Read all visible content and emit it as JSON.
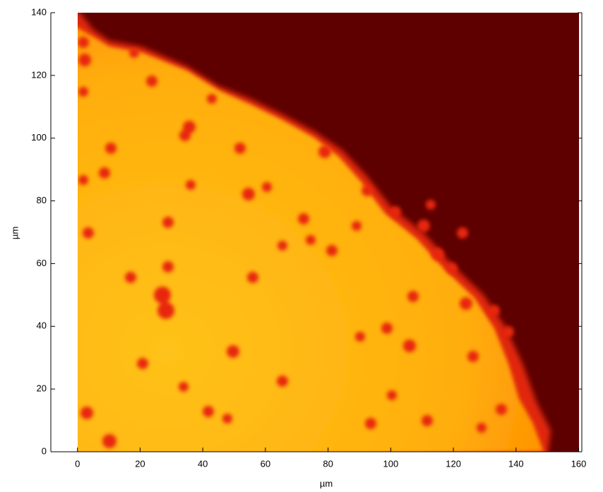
{
  "chart_data": {
    "type": "image",
    "xlabel": "µm",
    "ylabel": "µm",
    "xlim": [
      -8.5,
      161
    ],
    "ylim": [
      0,
      140
    ],
    "xticks": [
      0,
      20,
      40,
      60,
      80,
      100,
      120,
      140,
      160
    ],
    "yticks": [
      0,
      20,
      40,
      60,
      80,
      100,
      120,
      140
    ]
  }
}
